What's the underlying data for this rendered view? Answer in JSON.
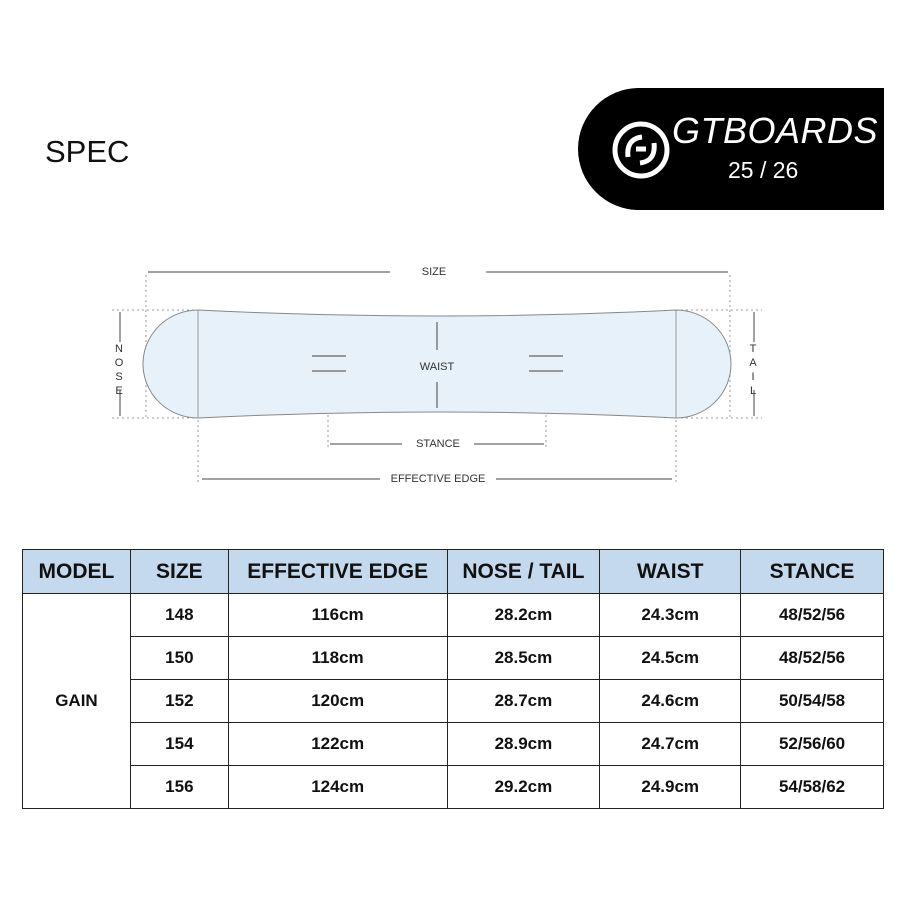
{
  "header": {
    "title": "SPEC"
  },
  "logo": {
    "brand": "GTBOARDS",
    "season": "25 / 26"
  },
  "diagram": {
    "size": "SIZE",
    "nose": "NOSE",
    "tail": "TAIL",
    "waist": "WAIST",
    "stance": "STANCE",
    "effective_edge": "EFFECTIVE EDGE"
  },
  "table": {
    "headers": [
      "MODEL",
      "SIZE",
      "EFFECTIVE EDGE",
      "NOSE / TAIL",
      "WAIST",
      "STANCE"
    ],
    "model": "GAIN",
    "rows": [
      [
        "148",
        "116cm",
        "28.2cm",
        "24.3cm",
        "48/52/56"
      ],
      [
        "150",
        "118cm",
        "28.5cm",
        "24.5cm",
        "48/52/56"
      ],
      [
        "152",
        "120cm",
        "28.7cm",
        "24.6cm",
        "50/54/58"
      ],
      [
        "154",
        "122cm",
        "28.9cm",
        "24.7cm",
        "52/56/60"
      ],
      [
        "156",
        "124cm",
        "29.2cm",
        "24.9cm",
        "54/58/62"
      ]
    ]
  }
}
